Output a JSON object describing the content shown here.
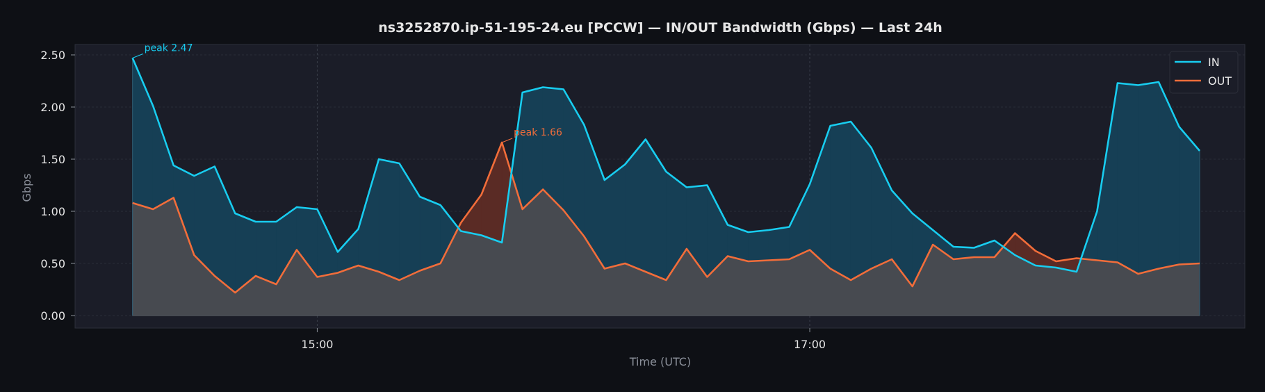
{
  "colors": {
    "background": "#0e1015",
    "plot_background": "#1b1d28",
    "in": "#18cdf0",
    "out": "#f26d3a",
    "text": "#e6e6e6",
    "muted": "#8a8f99",
    "grid": "#2f3340"
  },
  "chart_data": {
    "type": "area",
    "title": "ns3252870.ip-51-195-24.eu [PCCW] — IN/OUT Bandwidth (Gbps) — Last 24h",
    "xlabel": "Time (UTC)",
    "ylabel": "Gbps",
    "x": [
      "14:15",
      "14:20",
      "14:25",
      "14:30",
      "14:35",
      "14:40",
      "14:45",
      "14:50",
      "14:55",
      "15:00",
      "15:05",
      "15:10",
      "15:15",
      "15:20",
      "15:25",
      "15:30",
      "15:35",
      "15:40",
      "15:45",
      "15:50",
      "15:55",
      "16:00",
      "16:05",
      "16:10",
      "16:15",
      "16:20",
      "16:25",
      "16:30",
      "16:35",
      "16:40",
      "16:45",
      "16:50",
      "16:55",
      "17:00",
      "17:05",
      "17:10",
      "17:15",
      "17:20",
      "17:25",
      "17:30",
      "17:35",
      "17:40",
      "17:45",
      "17:50",
      "17:55",
      "18:00",
      "18:05",
      "18:10",
      "18:15",
      "18:20",
      "18:25",
      "18:30",
      "18:35"
    ],
    "xlim": [
      "14:01",
      "18:46"
    ],
    "xticks": [
      "15:00",
      "17:00"
    ],
    "ylim": [
      -0.12,
      2.6
    ],
    "yticks": [
      "0.00",
      "0.50",
      "1.00",
      "1.50",
      "2.00",
      "2.50"
    ],
    "grid": true,
    "legend": "top-right",
    "series": [
      {
        "name": "IN",
        "values": [
          2.47,
          2.01,
          1.44,
          1.34,
          1.43,
          0.98,
          0.9,
          0.9,
          1.04,
          1.02,
          0.61,
          0.83,
          1.5,
          1.46,
          1.14,
          1.06,
          0.81,
          0.77,
          0.7,
          2.14,
          2.19,
          2.17,
          1.83,
          1.3,
          1.45,
          1.69,
          1.38,
          1.23,
          1.25,
          0.87,
          0.8,
          0.82,
          0.85,
          1.26,
          1.82,
          1.86,
          1.61,
          1.2,
          0.98,
          0.82,
          0.66,
          0.65,
          0.72,
          0.58,
          0.48,
          0.46,
          0.42,
          1.0,
          2.23,
          2.21,
          2.24,
          1.81,
          1.58
        ]
      },
      {
        "name": "OUT",
        "values": [
          1.08,
          1.02,
          1.13,
          0.58,
          0.38,
          0.22,
          0.38,
          0.3,
          0.63,
          0.37,
          0.41,
          0.48,
          0.42,
          0.34,
          0.43,
          0.5,
          0.89,
          1.16,
          1.66,
          1.02,
          1.21,
          1.01,
          0.76,
          0.45,
          0.5,
          0.42,
          0.34,
          0.64,
          0.37,
          0.57,
          0.52,
          0.53,
          0.54,
          0.63,
          0.45,
          0.34,
          0.45,
          0.54,
          0.28,
          0.68,
          0.54,
          0.56,
          0.56,
          0.79,
          0.62,
          0.52,
          0.55,
          0.53,
          0.51,
          0.4,
          0.45,
          0.49,
          0.5
        ]
      }
    ],
    "annotations": [
      {
        "series": "IN",
        "text": "peak 2.47",
        "x": "14:15",
        "y": 2.47
      },
      {
        "series": "OUT",
        "text": "peak 1.66",
        "x": "15:45",
        "y": 1.66
      }
    ]
  }
}
